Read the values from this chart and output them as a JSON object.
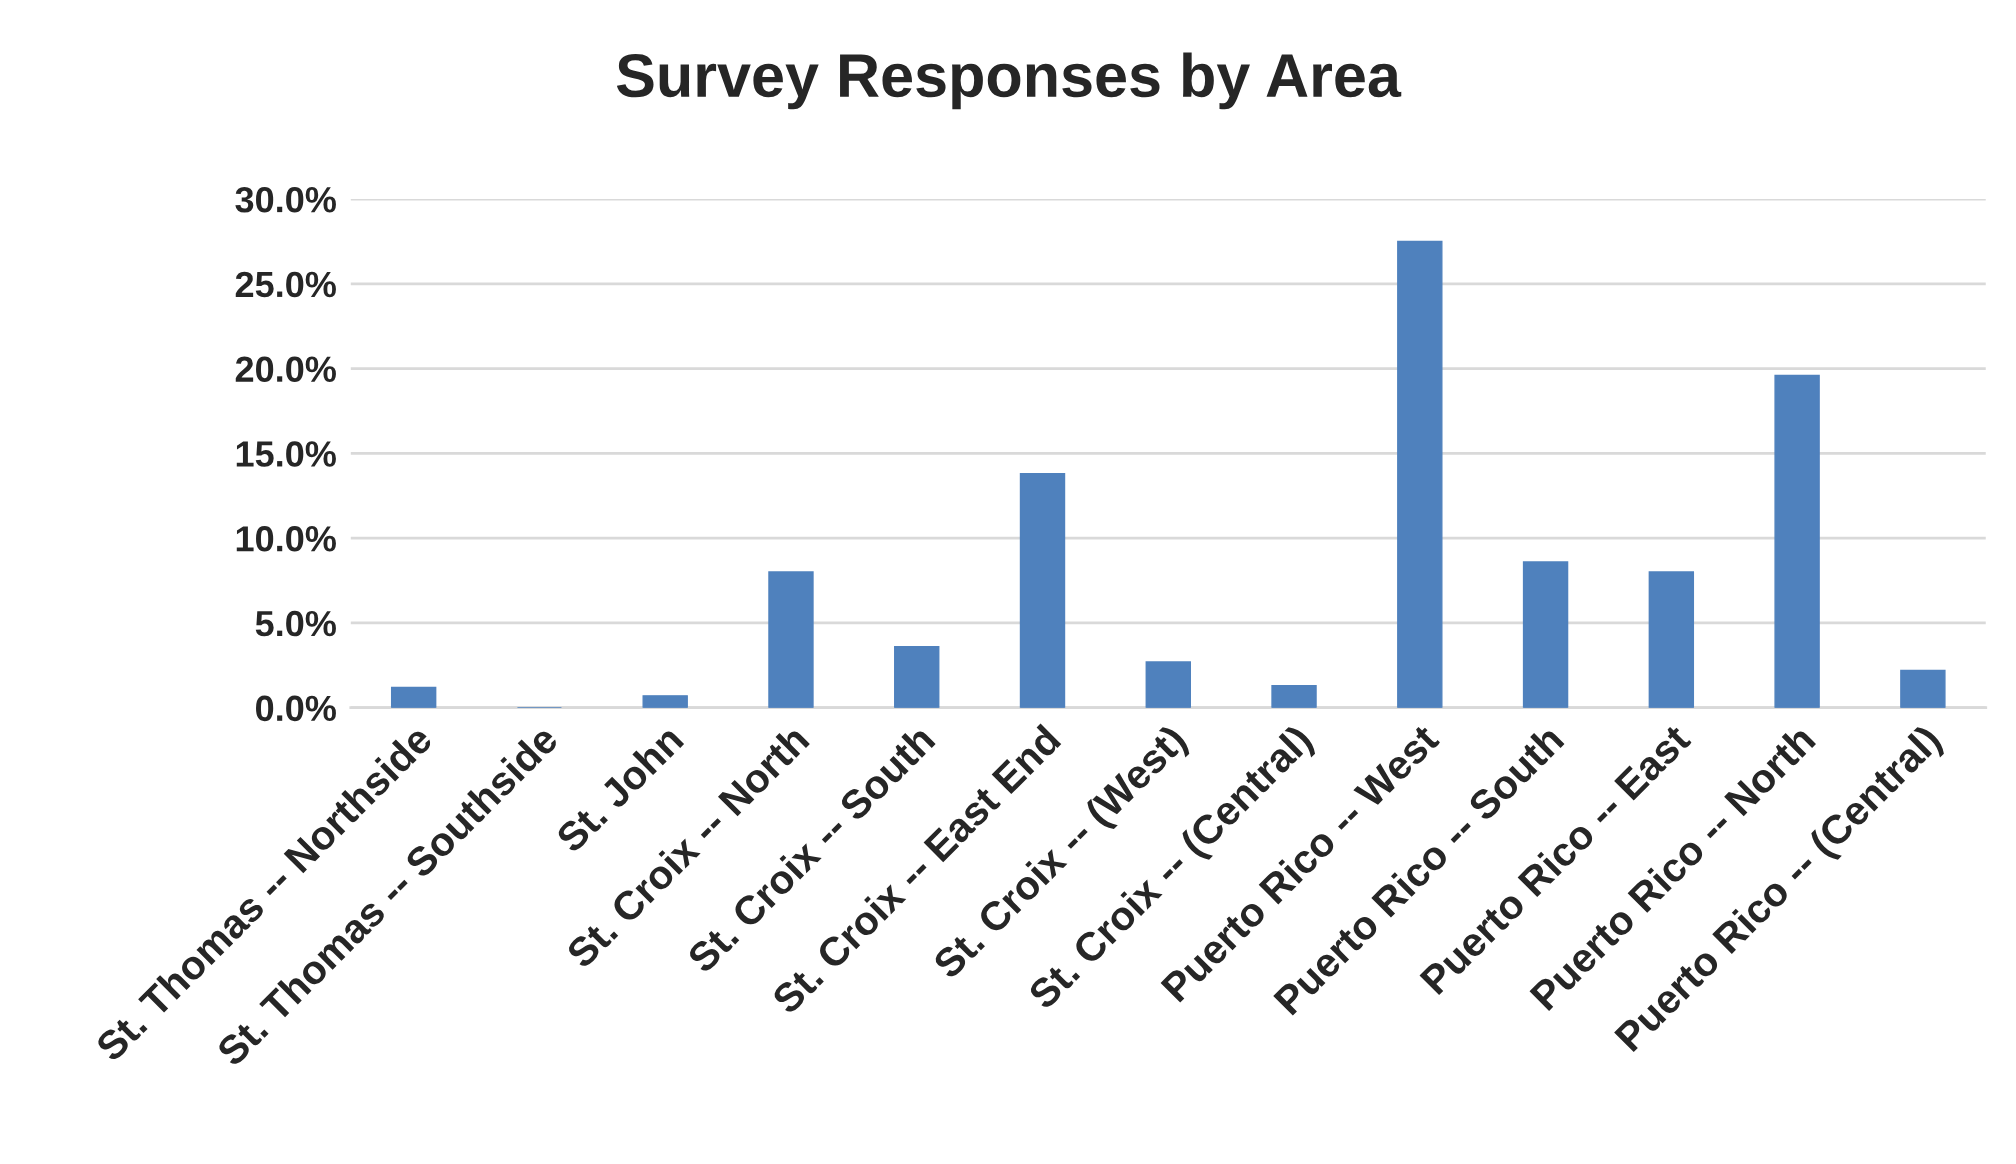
{
  "chart_data": {
    "type": "bar",
    "title": "Survey Responses by Area",
    "categories": [
      "St. Thomas -- Northside",
      "St. Thomas -- Southside",
      "St. John",
      "St. Croix -- North",
      "St. Croix -- South",
      "St. Croix -- East End",
      "St. Croix -- (West)",
      "St. Croix -- (Central)",
      "Puerto Rico -- West",
      "Puerto Rico -- South",
      "Puerto Rico -- East",
      "Puerto Rico -- North",
      "Puerto Rico -- (Central)"
    ],
    "values": [
      1.2,
      0,
      0.7,
      8.0,
      3.6,
      13.8,
      2.7,
      1.3,
      27.5,
      8.6,
      8.0,
      19.6,
      2.2
    ],
    "color": "#4f81bd",
    "ylim": [
      0,
      30
    ],
    "yticks": [
      {
        "value": 0,
        "label": "0.0%"
      },
      {
        "value": 5,
        "label": "5.0%"
      },
      {
        "value": 10,
        "label": "10.0%"
      },
      {
        "value": 15,
        "label": "15.0%"
      },
      {
        "value": 20,
        "label": "20.0%"
      },
      {
        "value": 25,
        "label": "25.0%"
      },
      {
        "value": 30,
        "label": "30.0%"
      }
    ],
    "grid": "y"
  }
}
